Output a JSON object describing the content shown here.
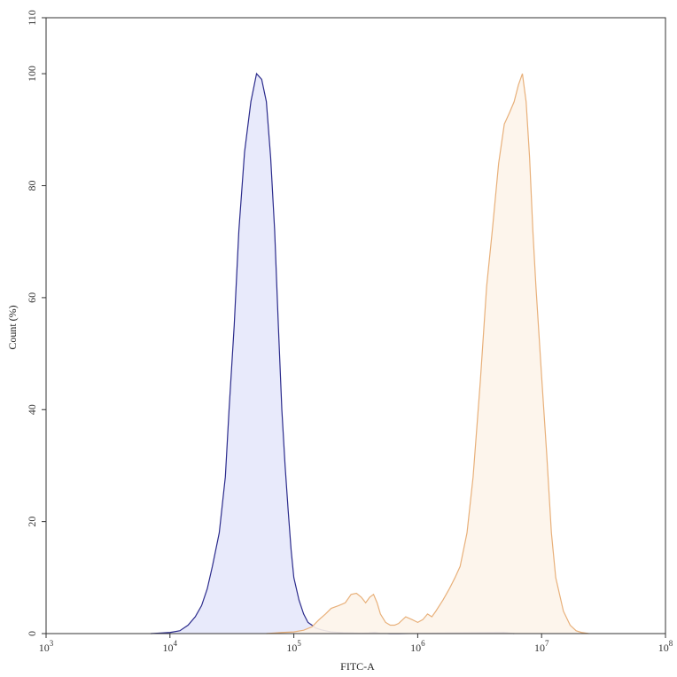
{
  "chart_data": {
    "type": "area",
    "title": "",
    "xlabel": "FITC-A",
    "ylabel": "Count  (%)",
    "xscale": "log",
    "xlim": [
      1000,
      100000000
    ],
    "ylim": [
      0,
      110
    ],
    "x_ticks": [
      {
        "value": 1000,
        "base": "10",
        "exp": "3"
      },
      {
        "value": 10000,
        "base": "10",
        "exp": "4"
      },
      {
        "value": 100000,
        "base": "10",
        "exp": "5"
      },
      {
        "value": 1000000,
        "base": "10",
        "exp": "6"
      },
      {
        "value": 10000000,
        "base": "10",
        "exp": "7"
      },
      {
        "value": 100000000,
        "base": "10",
        "exp": "8"
      }
    ],
    "y_ticks": [
      0,
      20,
      40,
      60,
      80,
      100,
      110
    ],
    "grid": false,
    "series": [
      {
        "color": "#2b2b8c",
        "fill": "#e6e8fb",
        "x": [
          7000,
          8500,
          10000,
          12000,
          14000,
          16000,
          18000,
          20000,
          22000,
          25000,
          28000,
          30000,
          33000,
          36000,
          40000,
          45000,
          50000,
          55000,
          60000,
          65000,
          70000,
          75000,
          80000,
          85000,
          90000,
          95000,
          100000,
          110000,
          120000,
          130000,
          140000,
          150000,
          165000,
          180000,
          200000,
          250000,
          300000,
          350000,
          400000,
          450000,
          500000,
          600000,
          700000,
          5000000,
          6000000
        ],
        "y": [
          0,
          0.1,
          0.2,
          0.5,
          1.5,
          3,
          5,
          8,
          12,
          18,
          28,
          40,
          55,
          72,
          86,
          95,
          100,
          99,
          95,
          85,
          72,
          55,
          40,
          30,
          22,
          15,
          10,
          6,
          3.5,
          2,
          1.5,
          1,
          0.7,
          0.5,
          0.3,
          0.15,
          0.1,
          0.05,
          0.1,
          0.2,
          0.05,
          0,
          0,
          0.2,
          0
        ]
      },
      {
        "color": "#e8b07a",
        "fill": "#fdf4ea",
        "x": [
          60000,
          70000,
          80000,
          100000,
          120000,
          140000,
          160000,
          180000,
          200000,
          230000,
          260000,
          290000,
          320000,
          350000,
          380000,
          410000,
          440000,
          470000,
          500000,
          550000,
          600000,
          650000,
          700000,
          800000,
          900000,
          1000000,
          1100000,
          1200000,
          1300000,
          1400000,
          1600000,
          1800000,
          2000000,
          2200000,
          2500000,
          2800000,
          3200000,
          3600000,
          4000000,
          4500000,
          5000000,
          5500000,
          6000000,
          6500000,
          7000000,
          7500000,
          8000000,
          8500000,
          9000000,
          10000000,
          11000000,
          12000000,
          13000000,
          15000000,
          17000000,
          19000000,
          21000000,
          24000000
        ],
        "y": [
          0,
          0.1,
          0.2,
          0.3,
          0.6,
          1.2,
          2.5,
          3.5,
          4.5,
          5,
          5.5,
          7,
          7.2,
          6.5,
          5.5,
          6.5,
          7,
          5.5,
          3.5,
          2,
          1.5,
          1.5,
          1.8,
          3,
          2.5,
          2,
          2.5,
          3.5,
          3,
          4,
          6,
          8,
          10,
          12,
          18,
          28,
          45,
          62,
          72,
          84,
          91,
          93,
          95,
          98,
          100,
          95,
          85,
          72,
          62,
          46,
          32,
          18,
          10,
          4,
          1.5,
          0.5,
          0.2,
          0
        ]
      }
    ]
  }
}
